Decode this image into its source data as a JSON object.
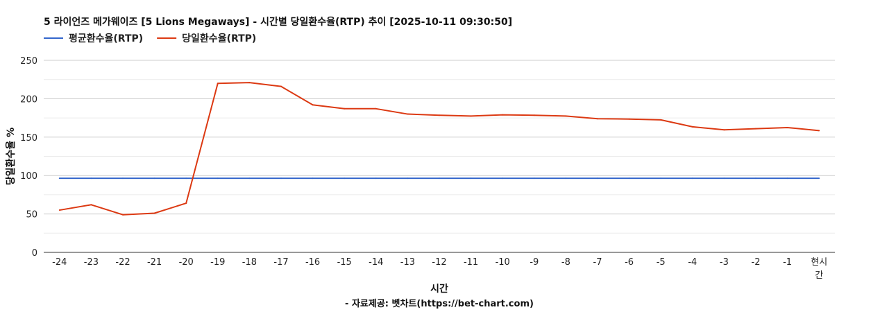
{
  "chart_data": {
    "type": "line",
    "title": "5 라이언즈 메가웨이즈 [5 Lions Megaways] - 시간별 당일환수율(RTP) 추이 [2025-10-11 09:30:50]",
    "xlabel": "시간",
    "ylabel": "당일환수율 %",
    "source": "- 자료제공: 벳차트(https://bet-chart.com)",
    "categories": [
      "-24",
      "-23",
      "-22",
      "-21",
      "-20",
      "-19",
      "-18",
      "-17",
      "-16",
      "-15",
      "-14",
      "-13",
      "-12",
      "-11",
      "-10",
      "-9",
      "-8",
      "-7",
      "-6",
      "-5",
      "-4",
      "-3",
      "-2",
      "-1",
      "현시간"
    ],
    "ylim": [
      0,
      250
    ],
    "yticks": [
      0,
      50,
      100,
      150,
      200,
      250
    ],
    "grid": true,
    "legend_position": "top-left",
    "series": [
      {
        "name": "평균환수율(RTP)",
        "color": "#3366cc",
        "values": [
          96.5,
          96.5,
          96.5,
          96.5,
          96.5,
          96.5,
          96.5,
          96.5,
          96.5,
          96.5,
          96.5,
          96.5,
          96.5,
          96.5,
          96.5,
          96.5,
          96.5,
          96.5,
          96.5,
          96.5,
          96.5,
          96.5,
          96.5,
          96.5,
          96.5
        ]
      },
      {
        "name": "당일환수율(RTP)",
        "color": "#dc3912",
        "values": [
          55,
          62,
          49,
          51,
          64,
          220,
          221,
          216,
          192,
          187,
          187,
          180,
          178.5,
          177.5,
          179,
          178.5,
          177.5,
          174,
          173.5,
          172.5,
          163.5,
          159.5,
          161,
          162.5,
          158.5
        ]
      }
    ]
  }
}
